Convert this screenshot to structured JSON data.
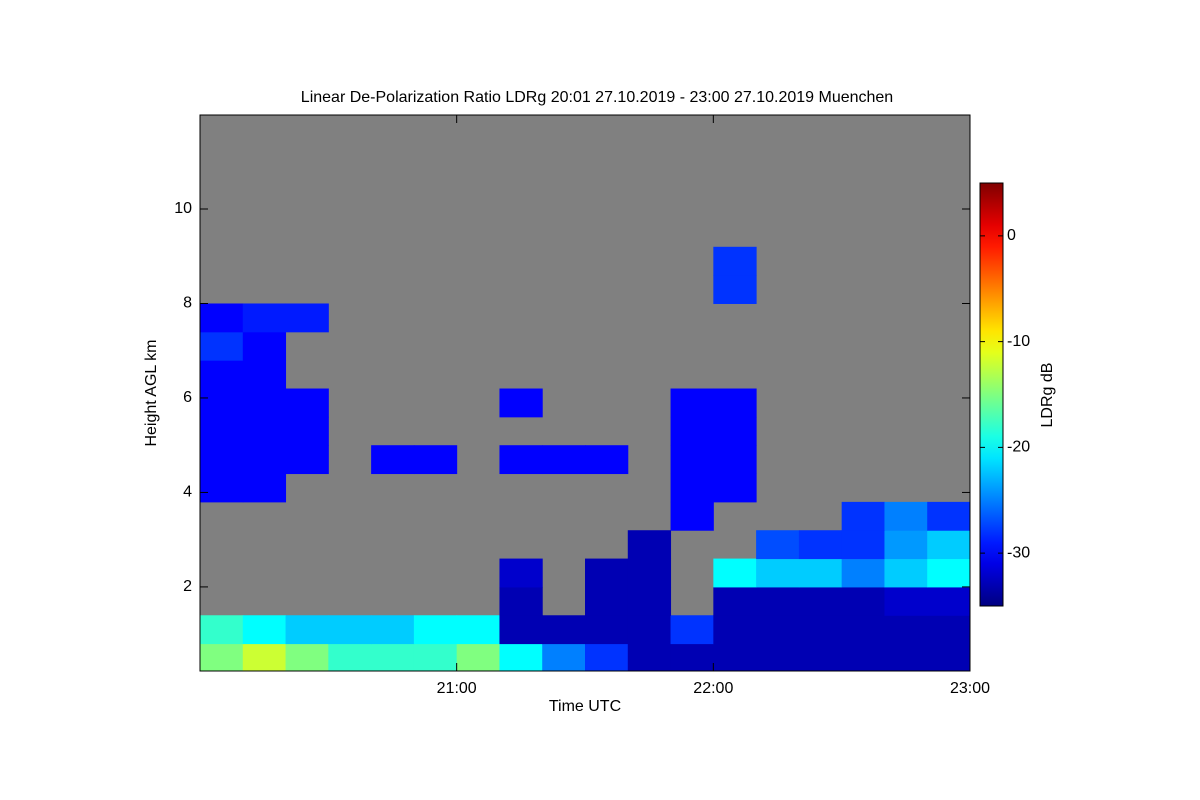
{
  "chart_data": {
    "type": "heatmap",
    "title": "Linear De-Polarization Ratio LDRg   20:01 27.10.2019 - 23:00 27.10.2019 Muenchen",
    "xlabel": "Time UTC",
    "ylabel": "Height AGL km",
    "colorbar_label": "LDRg dB",
    "xlim": [
      20,
      23
    ],
    "xticks": [
      {
        "value": 21,
        "label": "21:00"
      },
      {
        "value": 22,
        "label": "22:00"
      },
      {
        "value": 23,
        "label": "23:00"
      }
    ],
    "ylim": [
      0.22,
      11.99
    ],
    "yticks": [
      2,
      4,
      6,
      8,
      10
    ],
    "zlim": [
      -35,
      5
    ],
    "zticks": [
      0,
      -10,
      -20,
      -30
    ],
    "colormap": "jet",
    "nodata_color": "#808080",
    "x_bins": [
      20,
      20.1667,
      20.3333,
      20.5,
      20.6667,
      20.8333,
      21,
      21.1667,
      21.3333,
      21.5,
      21.6667,
      21.8333,
      22,
      22.1667,
      22.3333,
      22.5,
      22.6667,
      22.8333,
      23
    ],
    "y_bins": [
      0.22,
      0.8,
      1.4,
      2.0,
      2.6,
      3.2,
      3.8,
      4.4,
      5.0,
      5.6,
      6.2,
      6.8,
      7.4,
      8.0,
      8.6,
      9.2
    ],
    "z": [
      [
        -15,
        -12,
        -15,
        -18,
        -18,
        -18,
        -15,
        -20,
        -25,
        -28,
        -33,
        -33,
        -33,
        -33,
        -33,
        -33,
        -33,
        -33
      ],
      [
        -18,
        -20,
        -22,
        -22,
        -22,
        -20,
        -20,
        -33,
        -33,
        -33,
        -33,
        -28,
        -33,
        -33,
        -33,
        -33,
        -33,
        -33
      ],
      [
        null,
        null,
        null,
        null,
        null,
        null,
        null,
        -33,
        null,
        -33,
        -33,
        null,
        -33,
        -33,
        -33,
        -33,
        -32,
        -32
      ],
      [
        null,
        null,
        null,
        null,
        null,
        null,
        null,
        -32,
        null,
        -33,
        -33,
        null,
        -20,
        -22,
        -22,
        -25,
        -22,
        -20
      ],
      [
        null,
        null,
        null,
        null,
        null,
        null,
        null,
        null,
        null,
        null,
        -33,
        null,
        null,
        -27,
        -28,
        -28,
        -24,
        -22
      ],
      [
        null,
        null,
        null,
        null,
        null,
        null,
        null,
        null,
        null,
        null,
        null,
        -30,
        null,
        null,
        null,
        -28,
        -25,
        -28
      ],
      [
        -30,
        -30,
        null,
        null,
        null,
        null,
        null,
        null,
        null,
        null,
        null,
        -30,
        -30,
        null,
        null,
        null,
        null,
        null
      ],
      [
        -30,
        -30,
        -30,
        null,
        -30,
        -30,
        null,
        -30,
        -30,
        -30,
        null,
        -30,
        -30,
        null,
        null,
        null,
        null,
        null
      ],
      [
        -30,
        -30,
        -30,
        null,
        null,
        null,
        null,
        null,
        null,
        null,
        null,
        -30,
        -30,
        null,
        null,
        null,
        null,
        null
      ],
      [
        -30,
        -30,
        -30,
        null,
        null,
        null,
        null,
        -30,
        null,
        null,
        null,
        -30,
        -30,
        null,
        null,
        null,
        null,
        null
      ],
      [
        -30,
        -30,
        null,
        null,
        null,
        null,
        null,
        null,
        null,
        null,
        null,
        null,
        null,
        null,
        null,
        null,
        null,
        null
      ],
      [
        -28,
        -30,
        null,
        null,
        null,
        null,
        null,
        null,
        null,
        null,
        null,
        null,
        null,
        null,
        null,
        null,
        null,
        null
      ],
      [
        -30,
        -29,
        -29,
        null,
        null,
        null,
        null,
        null,
        null,
        null,
        null,
        null,
        null,
        null,
        null,
        null,
        null,
        null
      ],
      [
        null,
        null,
        null,
        null,
        null,
        null,
        null,
        null,
        null,
        null,
        null,
        null,
        -28,
        null,
        null,
        null,
        null,
        null
      ],
      [
        null,
        null,
        null,
        null,
        null,
        null,
        null,
        null,
        null,
        null,
        null,
        null,
        -28,
        null,
        null,
        null,
        null,
        null
      ]
    ]
  }
}
